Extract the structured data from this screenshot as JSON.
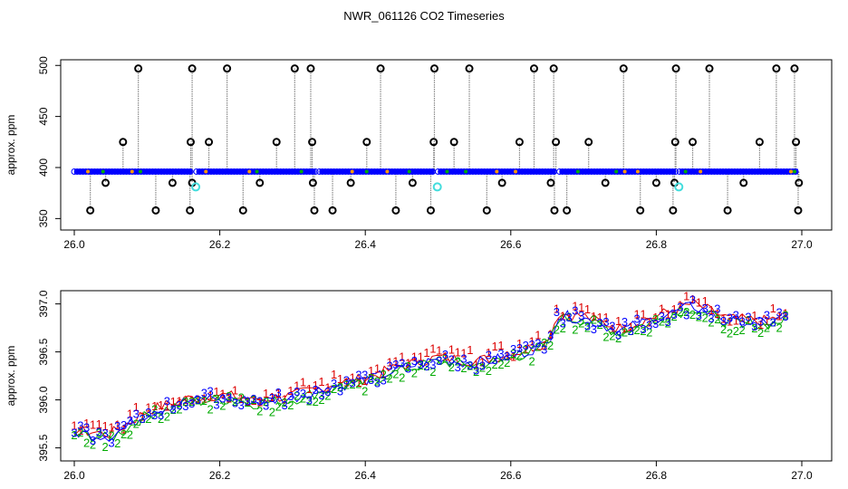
{
  "title": "NWR_061126  CO2 Timeseries",
  "colors": {
    "grey": "#8a8a8a",
    "blue": "#0000ff",
    "red": "#dd0000",
    "green": "#00aa00",
    "orange": "#ff9900",
    "cyan": "#44dddd",
    "black": "#000000"
  },
  "chart_data": [
    {
      "type": "scatter",
      "name": "top-panel",
      "ylabel": "approx. ppm",
      "xlim": [
        26.0,
        27.0
      ],
      "ylim": [
        345,
        502
      ],
      "xticks": [
        26.0,
        26.2,
        26.4,
        26.6,
        26.8,
        27.0
      ],
      "xtick_labels": [
        "26.0",
        "26.2",
        "26.4",
        "26.6",
        "26.8",
        "27.0"
      ],
      "yticks": [
        350,
        400,
        450,
        500
      ],
      "ytick_labels": [
        "350",
        "400",
        "450",
        "500"
      ],
      "baseline_segments": [
        {
          "x0": 26.0,
          "x1": 26.162,
          "y": 396
        },
        {
          "x0": 26.168,
          "x1": 26.332,
          "y": 396
        },
        {
          "x0": 26.337,
          "x1": 26.495,
          "y": 396
        },
        {
          "x0": 26.5,
          "x1": 26.662,
          "y": 396
        },
        {
          "x0": 26.667,
          "x1": 26.827,
          "y": 396
        },
        {
          "x0": 26.832,
          "x1": 26.995,
          "y": 396
        }
      ],
      "spikes_high": [
        26.088,
        26.162,
        26.21,
        26.303,
        26.325,
        26.421,
        26.495,
        26.543,
        26.632,
        26.659,
        26.755,
        26.827,
        26.873,
        26.965,
        26.99
      ],
      "spikes_mid_high": [
        26.067,
        26.16,
        26.185,
        26.278,
        26.327,
        26.402,
        26.494,
        26.522,
        26.612,
        26.662,
        26.707,
        26.826,
        26.85,
        26.942,
        26.992
      ],
      "spikes_low": [
        26.022,
        26.112,
        26.159,
        26.232,
        26.33,
        26.355,
        26.442,
        26.49,
        26.567,
        26.66,
        26.677,
        26.778,
        26.823,
        26.898,
        26.995
      ],
      "spikes_mid_low": [
        26.043,
        26.135,
        26.162,
        26.255,
        26.328,
        26.38,
        26.465,
        26.588,
        26.655,
        26.73,
        26.8,
        26.825,
        26.92,
        26.996
      ],
      "cyan_points": [
        {
          "x": 26.167,
          "y": 381
        },
        {
          "x": 26.499,
          "y": 381
        },
        {
          "x": 26.831,
          "y": 381
        }
      ]
    },
    {
      "type": "line",
      "name": "bottom-panel",
      "ylabel": "approx. ppm",
      "xlim": [
        26.0,
        27.0
      ],
      "ylim": [
        395.43,
        397.1
      ],
      "xticks": [
        26.0,
        26.2,
        26.4,
        26.6,
        26.8,
        27.0
      ],
      "xtick_labels": [
        "26.0",
        "26.2",
        "26.4",
        "26.6",
        "26.8",
        "27.0"
      ],
      "yticks": [
        395.5,
        396.0,
        396.5,
        397.0
      ],
      "ytick_labels": [
        "395.5",
        "396.0",
        "396.5",
        "397.0"
      ],
      "trend": [
        {
          "x": 26.0,
          "y": 395.66
        },
        {
          "x": 26.05,
          "y": 395.62
        },
        {
          "x": 26.1,
          "y": 395.86
        },
        {
          "x": 26.15,
          "y": 395.98
        },
        {
          "x": 26.2,
          "y": 396.03
        },
        {
          "x": 26.25,
          "y": 395.98
        },
        {
          "x": 26.3,
          "y": 396.02
        },
        {
          "x": 26.35,
          "y": 396.13
        },
        {
          "x": 26.4,
          "y": 396.2
        },
        {
          "x": 26.45,
          "y": 396.33
        },
        {
          "x": 26.5,
          "y": 396.42
        },
        {
          "x": 26.55,
          "y": 396.38
        },
        {
          "x": 26.6,
          "y": 396.45
        },
        {
          "x": 26.65,
          "y": 396.58
        },
        {
          "x": 26.665,
          "y": 396.88
        },
        {
          "x": 26.7,
          "y": 396.85
        },
        {
          "x": 26.75,
          "y": 396.72
        },
        {
          "x": 26.8,
          "y": 396.85
        },
        {
          "x": 26.85,
          "y": 396.98
        },
        {
          "x": 26.9,
          "y": 396.82
        },
        {
          "x": 26.95,
          "y": 396.8
        },
        {
          "x": 26.98,
          "y": 396.86
        }
      ],
      "series": [
        {
          "name": "1",
          "color": "red",
          "offset": 0.06
        },
        {
          "name": "2",
          "color": "green",
          "offset": -0.05
        },
        {
          "name": "3",
          "color": "blue",
          "offset": 0.0
        }
      ]
    }
  ]
}
